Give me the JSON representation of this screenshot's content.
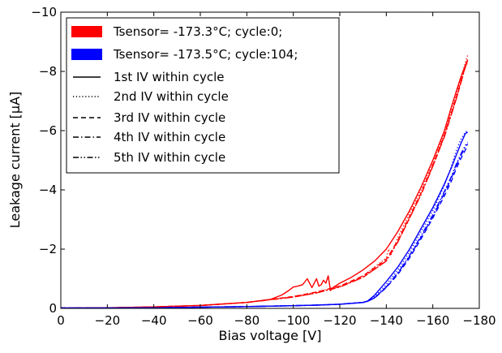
{
  "chart_data": {
    "type": "line",
    "xlabel": "Bias voltage [V]",
    "ylabel": "Leakage current [μA]",
    "xlim": [
      0,
      -180
    ],
    "ylim": [
      0,
      -10
    ],
    "x_ticks": [
      0,
      -20,
      -40,
      -60,
      -80,
      -100,
      -120,
      -140,
      -160,
      -180
    ],
    "y_ticks": [
      0,
      -2,
      -4,
      -6,
      -8,
      -10
    ],
    "x_tick_labels": [
      "0",
      "−20",
      "−40",
      "−60",
      "−80",
      "−100",
      "−120",
      "−140",
      "−160",
      "−180"
    ],
    "y_tick_labels": [
      "0",
      "−2",
      "−4",
      "−6",
      "−8",
      "−10"
    ],
    "grid": false,
    "legend_position": "top-left",
    "legend": [
      {
        "label": "Tsensor= -173.3°C; cycle:0;",
        "kind": "color",
        "color": "#ff0000"
      },
      {
        "label": "Tsensor= -173.5°C; cycle:104;",
        "kind": "color",
        "color": "#0000ff"
      },
      {
        "label": "1st IV within cycle",
        "kind": "line",
        "dash": "solid"
      },
      {
        "label": "2nd IV within cycle",
        "kind": "line",
        "dash": "dotted"
      },
      {
        "label": "3rd IV within cycle",
        "kind": "line",
        "dash": "dashed"
      },
      {
        "label": "4th IV within cycle",
        "kind": "line",
        "dash": "dashdot"
      },
      {
        "label": "5th IV within cycle",
        "kind": "line",
        "dash": "dashdotdot"
      }
    ],
    "series": [
      {
        "color": "#ff0000",
        "dash": "solid",
        "x": [
          0,
          -20,
          -40,
          -60,
          -80,
          -90,
          -95,
          -98,
          -100,
          -102,
          -104,
          -106,
          -108,
          -110,
          -111,
          -112,
          -113,
          -114,
          -115,
          -116,
          -117,
          -118,
          -120,
          -125,
          -130,
          -135,
          -140,
          -145,
          -150,
          -155,
          -160,
          -165,
          -168,
          -170,
          -172,
          -174,
          -175
        ],
        "y": [
          -0.01,
          -0.02,
          -0.05,
          -0.1,
          -0.2,
          -0.3,
          -0.45,
          -0.6,
          -0.72,
          -0.75,
          -0.8,
          -1.0,
          -0.7,
          -1.0,
          -0.75,
          -0.8,
          -0.95,
          -0.85,
          -1.1,
          -0.6,
          -0.7,
          -0.75,
          -0.85,
          -1.05,
          -1.3,
          -1.6,
          -2.0,
          -2.6,
          -3.3,
          -4.1,
          -5.0,
          -6.0,
          -6.8,
          -7.3,
          -7.8,
          -8.2,
          -8.4
        ]
      },
      {
        "color": "#ff0000",
        "dash": "dotted",
        "x": [
          0,
          -20,
          -40,
          -60,
          -80,
          -100,
          -110,
          -120,
          -125,
          -130,
          -135,
          -140,
          -141,
          -142,
          -145,
          -150,
          -155,
          -160,
          -165,
          -168,
          -170,
          -172,
          -174,
          -175
        ],
        "y": [
          -0.01,
          -0.02,
          -0.05,
          -0.1,
          -0.2,
          -0.4,
          -0.55,
          -0.75,
          -0.9,
          -1.1,
          -1.4,
          -1.7,
          -2.0,
          -1.8,
          -2.4,
          -3.2,
          -4.0,
          -4.95,
          -5.9,
          -6.7,
          -7.2,
          -7.75,
          -8.3,
          -8.55
        ]
      },
      {
        "color": "#ff0000",
        "dash": "dashed",
        "x": [
          0,
          -20,
          -40,
          -60,
          -80,
          -100,
          -110,
          -120,
          -130,
          -140,
          -145,
          -150,
          -155,
          -160,
          -165,
          -168,
          -170,
          -172,
          -174,
          -175
        ],
        "y": [
          -0.01,
          -0.02,
          -0.05,
          -0.1,
          -0.2,
          -0.4,
          -0.55,
          -0.75,
          -1.1,
          -1.65,
          -2.3,
          -3.1,
          -3.9,
          -4.85,
          -5.85,
          -6.6,
          -7.1,
          -7.65,
          -8.2,
          -8.4
        ]
      },
      {
        "color": "#ff0000",
        "dash": "dashdot",
        "x": [
          0,
          -20,
          -40,
          -60,
          -80,
          -100,
          -110,
          -120,
          -130,
          -140,
          -145,
          -150,
          -155,
          -160,
          -165,
          -168,
          -170,
          -172,
          -174,
          -175
        ],
        "y": [
          -0.01,
          -0.02,
          -0.05,
          -0.1,
          -0.2,
          -0.38,
          -0.52,
          -0.72,
          -1.05,
          -1.6,
          -2.25,
          -3.05,
          -3.85,
          -4.8,
          -5.8,
          -6.55,
          -7.05,
          -7.6,
          -8.15,
          -8.35
        ]
      },
      {
        "color": "#ff0000",
        "dash": "dashdotdot",
        "x": [
          0,
          -20,
          -40,
          -60,
          -80,
          -100,
          -110,
          -120,
          -130,
          -140,
          -145,
          -150,
          -155,
          -160,
          -165,
          -168,
          -170,
          -172,
          -174,
          -175
        ],
        "y": [
          -0.01,
          -0.02,
          -0.05,
          -0.1,
          -0.2,
          -0.38,
          -0.52,
          -0.72,
          -1.05,
          -1.6,
          -2.25,
          -3.05,
          -3.85,
          -4.8,
          -5.8,
          -6.55,
          -7.05,
          -7.6,
          -8.15,
          -8.3
        ]
      },
      {
        "color": "#0000ff",
        "dash": "solid",
        "x": [
          0,
          -20,
          -40,
          -60,
          -80,
          -100,
          -110,
          -120,
          -125,
          -130,
          -132,
          -135,
          -140,
          -145,
          -150,
          -155,
          -160,
          -165,
          -168,
          -170,
          -172,
          -174,
          -175
        ],
        "y": [
          -0.01,
          -0.01,
          -0.02,
          -0.04,
          -0.06,
          -0.09,
          -0.11,
          -0.14,
          -0.17,
          -0.2,
          -0.25,
          -0.45,
          -0.9,
          -1.4,
          -2.0,
          -2.7,
          -3.4,
          -4.2,
          -4.75,
          -5.15,
          -5.55,
          -5.9,
          -5.95
        ]
      },
      {
        "color": "#0000ff",
        "dash": "dotted",
        "x": [
          0,
          -20,
          -40,
          -60,
          -80,
          -100,
          -110,
          -120,
          -125,
          -130,
          -132,
          -135,
          -140,
          -145,
          -150,
          -155,
          -160,
          -165,
          -168,
          -170,
          -172,
          -174,
          -175
        ],
        "y": [
          -0.01,
          -0.01,
          -0.02,
          -0.04,
          -0.06,
          -0.09,
          -0.11,
          -0.14,
          -0.17,
          -0.2,
          -0.25,
          -0.4,
          -0.8,
          -1.3,
          -1.9,
          -2.6,
          -3.3,
          -4.15,
          -4.8,
          -5.3,
          -5.7,
          -5.95,
          -6.0
        ]
      },
      {
        "color": "#0000ff",
        "dash": "dashed",
        "x": [
          0,
          -20,
          -40,
          -60,
          -80,
          -100,
          -110,
          -120,
          -125,
          -130,
          -132,
          -135,
          -140,
          -145,
          -150,
          -155,
          -160,
          -165,
          -168,
          -170,
          -172,
          -174,
          -175
        ],
        "y": [
          -0.01,
          -0.01,
          -0.02,
          -0.04,
          -0.06,
          -0.09,
          -0.11,
          -0.14,
          -0.17,
          -0.2,
          -0.24,
          -0.35,
          -0.7,
          -1.15,
          -1.7,
          -2.35,
          -3.05,
          -3.8,
          -4.3,
          -4.7,
          -5.05,
          -5.35,
          -5.45
        ]
      },
      {
        "color": "#0000ff",
        "dash": "dashdot",
        "x": [
          0,
          -20,
          -40,
          -60,
          -80,
          -100,
          -110,
          -120,
          -125,
          -130,
          -132,
          -135,
          -140,
          -145,
          -150,
          -155,
          -160,
          -165,
          -168,
          -170,
          -172,
          -174,
          -175
        ],
        "y": [
          -0.01,
          -0.01,
          -0.02,
          -0.04,
          -0.06,
          -0.09,
          -0.11,
          -0.14,
          -0.17,
          -0.2,
          -0.24,
          -0.36,
          -0.72,
          -1.2,
          -1.75,
          -2.4,
          -3.1,
          -3.9,
          -4.4,
          -4.8,
          -5.15,
          -5.45,
          -5.55
        ]
      },
      {
        "color": "#0000ff",
        "dash": "dashdotdot",
        "x": [
          0,
          -20,
          -40,
          -60,
          -80,
          -100,
          -110,
          -120,
          -125,
          -130,
          -132,
          -135,
          -140,
          -145,
          -150,
          -155,
          -160,
          -165,
          -168,
          -170,
          -172,
          -174,
          -175
        ],
        "y": [
          -0.01,
          -0.01,
          -0.02,
          -0.04,
          -0.06,
          -0.09,
          -0.11,
          -0.14,
          -0.17,
          -0.2,
          -0.24,
          -0.36,
          -0.72,
          -1.2,
          -1.78,
          -2.45,
          -3.15,
          -3.95,
          -4.45,
          -4.85,
          -5.2,
          -5.5,
          -5.6
        ]
      }
    ]
  }
}
